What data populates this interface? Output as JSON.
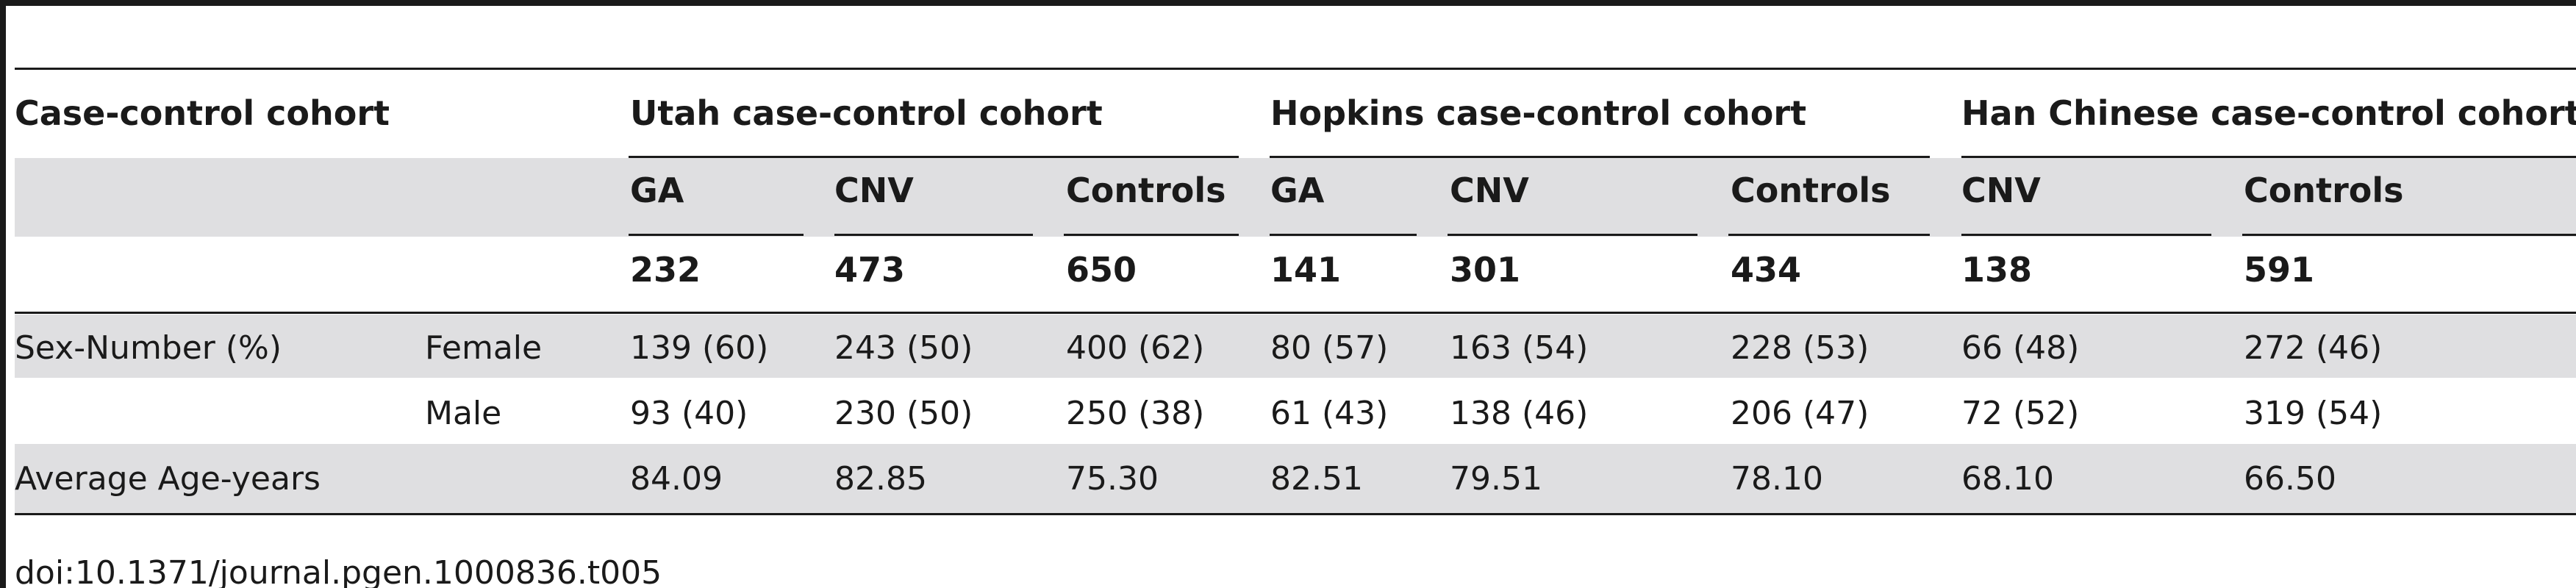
{
  "table": {
    "header_row1": {
      "row_label": "Case-control cohort",
      "groups": [
        "Utah case-control cohort",
        "Hopkins case-control cohort",
        "Han Chinese case-control cohort"
      ]
    },
    "header_row2": [
      "GA",
      "CNV",
      "Controls",
      "GA",
      "CNV",
      "Controls",
      "CNV",
      "Controls"
    ],
    "header_row3": [
      "232",
      "473",
      "650",
      "141",
      "301",
      "434",
      "138",
      "591"
    ],
    "rows": [
      {
        "label": "Sex-Number (%)",
        "sublabel": "Female",
        "values": [
          "139 (60)",
          "243 (50)",
          "400 (62)",
          "80 (57)",
          "163 (54)",
          "228 (53)",
          "66 (48)",
          "272 (46)"
        ]
      },
      {
        "label": "",
        "sublabel": "Male",
        "values": [
          "93 (40)",
          "230 (50)",
          "250 (38)",
          "61 (43)",
          "138 (46)",
          "206 (47)",
          "72 (52)",
          "319 (54)"
        ]
      },
      {
        "label": "Average Age-years",
        "sublabel": "",
        "values": [
          "84.09",
          "82.85",
          "75.30",
          "82.51",
          "79.51",
          "78.10",
          "68.10",
          "66.50"
        ]
      }
    ]
  },
  "doi": "doi:10.1371/journal.pgen.1000836.t005"
}
